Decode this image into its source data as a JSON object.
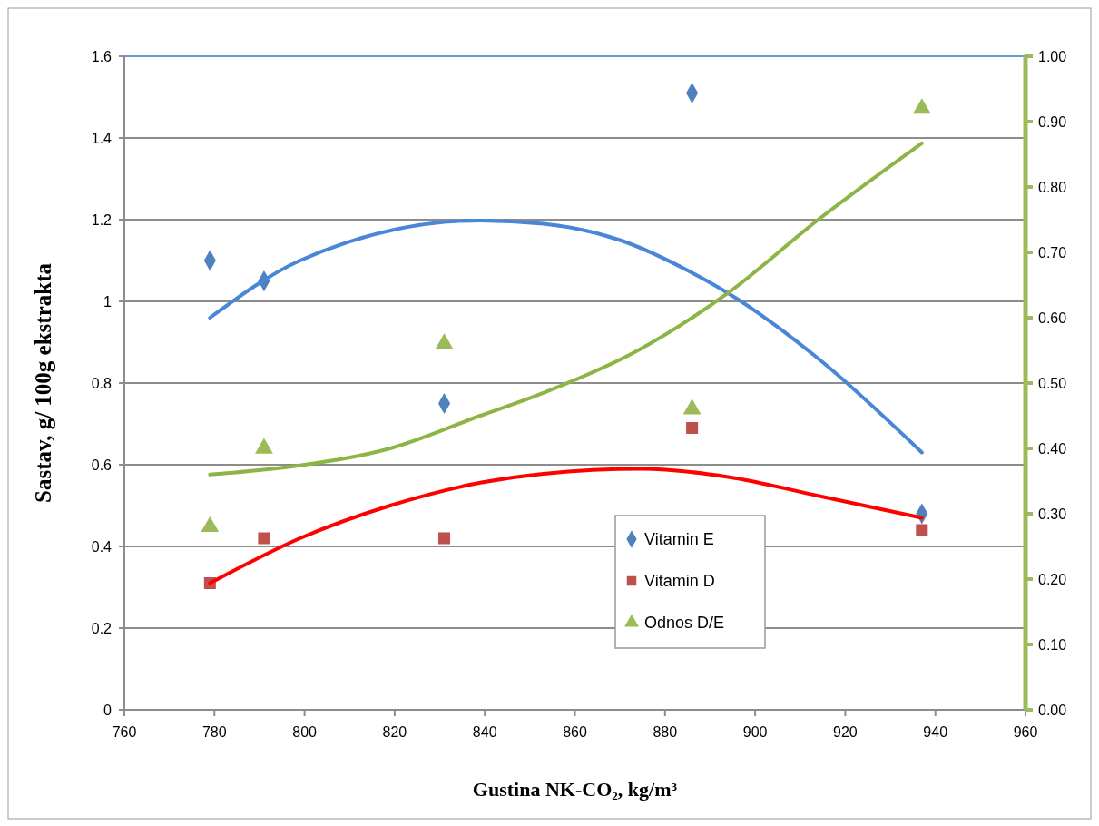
{
  "chart_data": {
    "type": "scatter",
    "xlabel": "Gustina NK-CO₂, kg/m³",
    "ylabel": "Sastav, g/ 100g ekstrakta",
    "xlim": [
      760,
      960
    ],
    "xticks": [
      760,
      780,
      800,
      820,
      840,
      860,
      880,
      900,
      920,
      940,
      960
    ],
    "ylim": [
      0,
      1.6
    ],
    "yticks": [
      0,
      0.2,
      0.4,
      0.6,
      0.8,
      1,
      1.2,
      1.4,
      1.6
    ],
    "y2lim": [
      0,
      1
    ],
    "y2ticks": [
      {
        "value": 0,
        "label": "0.00"
      },
      {
        "value": 0.1,
        "label": "0.10"
      },
      {
        "value": 0.2,
        "label": "0.20"
      },
      {
        "value": 0.3,
        "label": "0.30"
      },
      {
        "value": 0.4,
        "label": "0.40"
      },
      {
        "value": 0.5,
        "label": "0.50"
      },
      {
        "value": 0.6,
        "label": "0.60"
      },
      {
        "value": 0.7,
        "label": "0.70"
      },
      {
        "value": 0.8,
        "label": "0.80"
      },
      {
        "value": 0.9,
        "label": "0.90"
      },
      {
        "value": 1,
        "label": "1.00"
      }
    ],
    "grid": "y",
    "legend": "bottom",
    "series": [
      {
        "name": "Vitamin E",
        "marker": "diamond",
        "color": "#4f81bd",
        "x": [
          779,
          791,
          831,
          886,
          937
        ],
        "values": [
          1.1,
          1.05,
          0.75,
          1.51,
          0.48
        ]
      },
      {
        "name": "Vitamin D",
        "marker": "square",
        "color": "#c0504d",
        "x": [
          779,
          791,
          831,
          886,
          937
        ],
        "values": [
          0.31,
          0.42,
          0.42,
          0.69,
          0.44
        ]
      },
      {
        "name": "Odnos D/E",
        "marker": "triangle",
        "color": "#9bbb59",
        "axis": "y2",
        "x": [
          779,
          791,
          831,
          886,
          937
        ],
        "values": [
          0.28,
          0.4,
          0.56,
          0.46,
          0.92
        ]
      },
      {
        "type": "line",
        "marker": "none",
        "color": "#4a86d8",
        "x": [
          779,
          799,
          839,
          853,
          870,
          886,
          894,
          914,
          937
        ],
        "values": [
          0.96,
          1.1,
          1.198,
          1.19,
          1.15,
          1.07,
          1.02,
          0.86,
          0.63
        ]
      },
      {
        "type": "line",
        "marker": "none",
        "color": "#ff0000",
        "x": [
          779,
          799,
          819,
          839,
          853,
          875,
          894,
          914,
          937
        ],
        "values": [
          0.31,
          0.42,
          0.5,
          0.556,
          0.578,
          0.59,
          0.57,
          0.524,
          0.47
        ]
      },
      {
        "type": "line",
        "marker": "none",
        "color": "#8db545",
        "axis": "y2",
        "x": [
          779,
          799,
          819,
          839,
          853,
          874,
          894,
          914,
          937
        ],
        "values": [
          0.36,
          0.374,
          0.4,
          0.45,
          0.485,
          0.55,
          0.638,
          0.75,
          0.867
        ]
      }
    ]
  }
}
